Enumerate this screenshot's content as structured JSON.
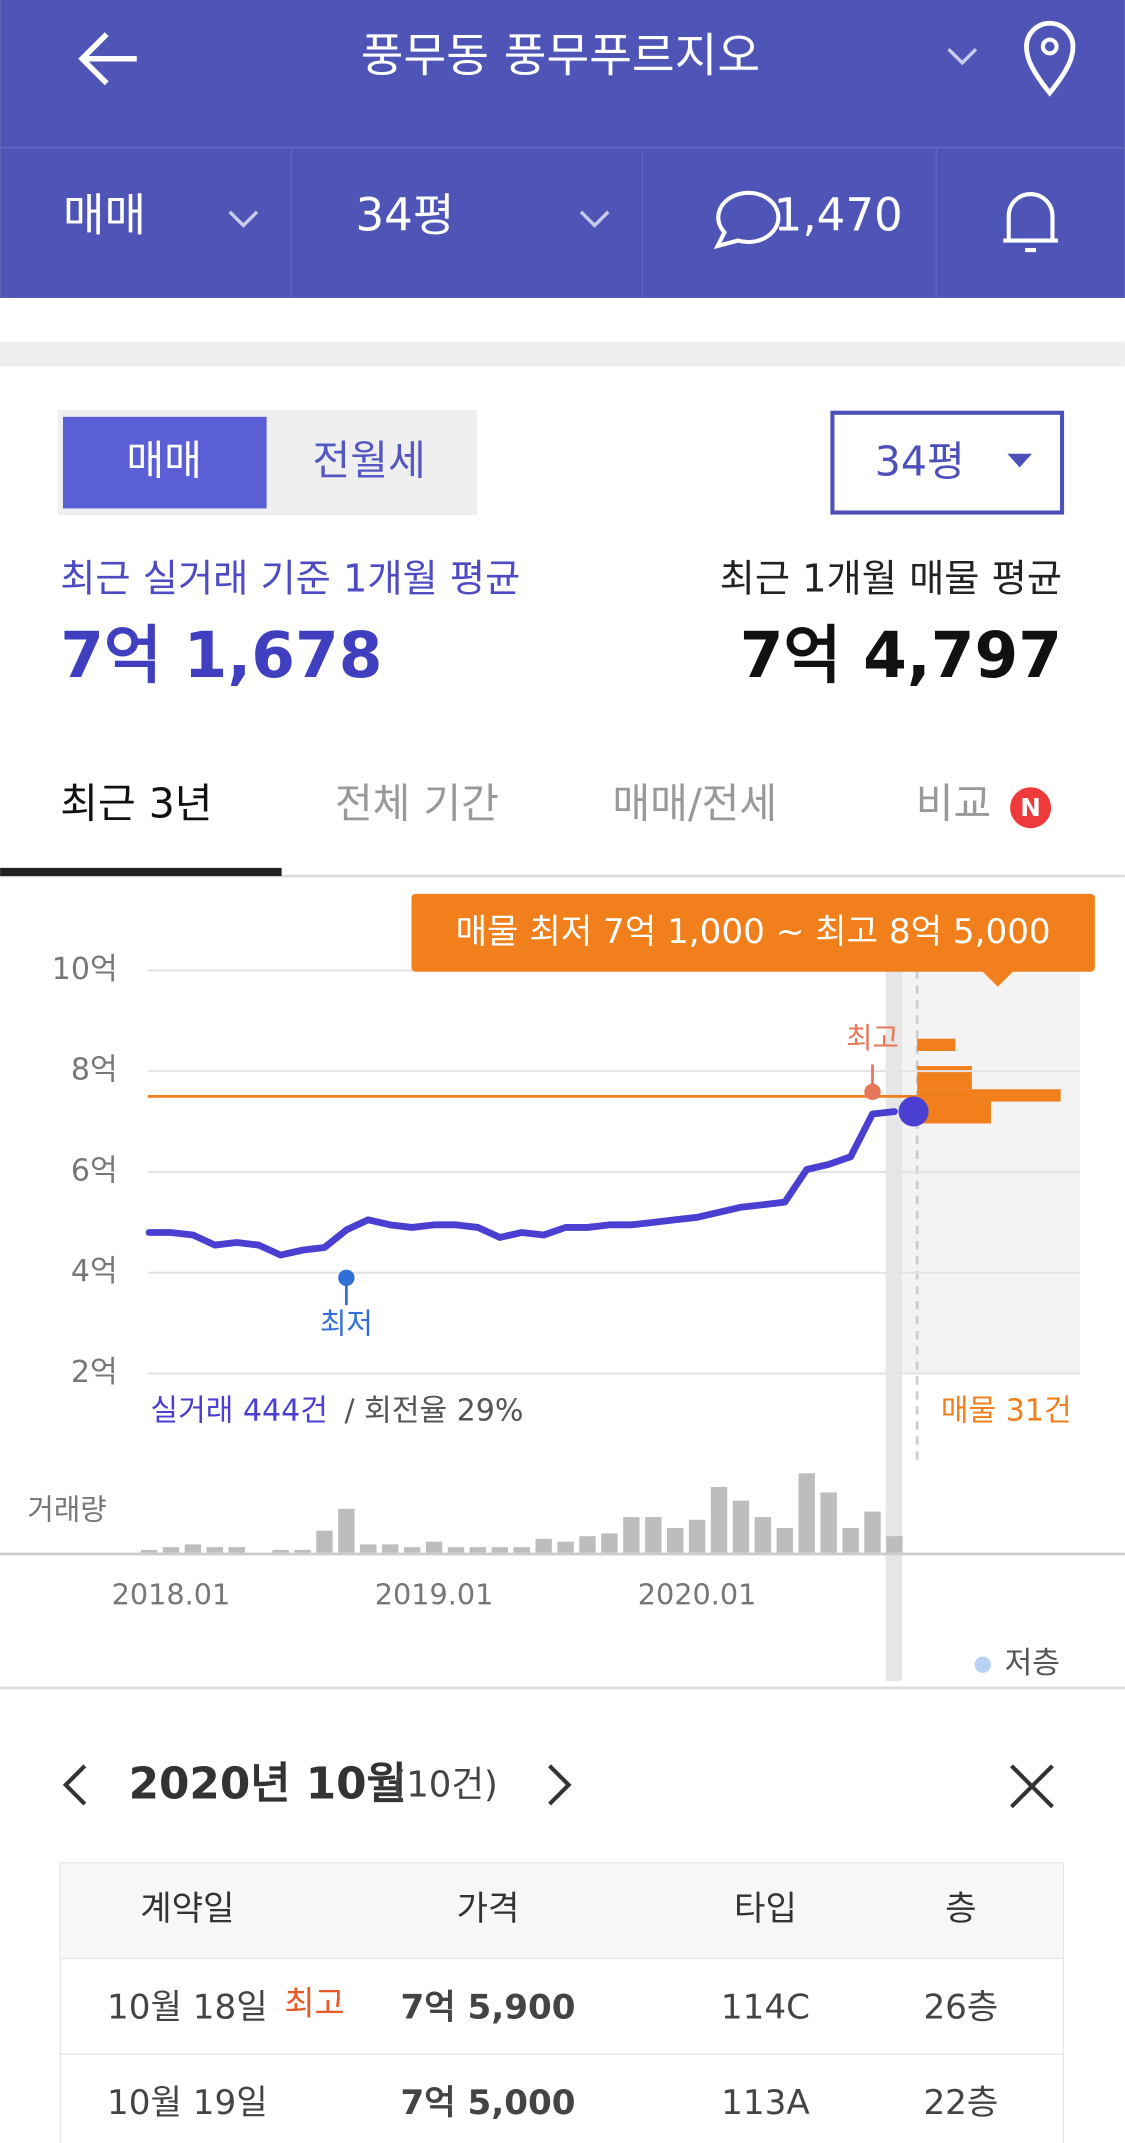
{
  "header": {
    "title": "풍무동 풍무푸르지오"
  },
  "toolbar": {
    "trade": "매매",
    "size": "34평",
    "comments": "1,470"
  },
  "toggle": {
    "options": [
      "매매",
      "전월세"
    ],
    "size": "34평"
  },
  "summary": {
    "left_label": "최근 실거래 기준 1개월 평균",
    "left_value": "7억 1,678",
    "right_label": "최근 1개월 매물 평균",
    "right_value": "7억 4,797"
  },
  "tabs": [
    "최근 3년",
    "전체 기간",
    "매매/전세",
    "비교"
  ],
  "badge": "N",
  "chart_data": {
    "type": "line",
    "tooltip": "매물 최저 7억 1,000 ~ 최고 8억 5,000",
    "categories": [
      null,
      "2018.01",
      null,
      null,
      null,
      null,
      null,
      null,
      null,
      null,
      null,
      null,
      null,
      "2019.01",
      null,
      null,
      null,
      null,
      null,
      null,
      null,
      null,
      null,
      null,
      null,
      "2020.01",
      null,
      null,
      null,
      null,
      null,
      null,
      null,
      null,
      null
    ],
    "series": [
      {
        "color": "#4a3fd1",
        "values": [
          4.8,
          4.8,
          4.75,
          4.55,
          4.6,
          4.55,
          4.35,
          4.45,
          4.5,
          4.85,
          5.05,
          4.95,
          4.9,
          4.95,
          4.95,
          4.9,
          4.7,
          4.8,
          4.75,
          4.9,
          4.9,
          4.95,
          4.95,
          5.0,
          5.05,
          5.1,
          5.2,
          5.3,
          5.35,
          5.4,
          6.05,
          6.15,
          6.3,
          7.15,
          7.2
        ]
      }
    ],
    "volume": {
      "label": "거래량",
      "color": "#bdbdbd",
      "values": [
        1,
        2,
        3,
        2,
        2,
        0,
        1,
        1,
        8,
        16,
        3,
        3,
        2,
        4,
        2,
        2,
        2,
        2,
        5,
        4,
        6,
        7,
        13,
        13,
        9,
        12,
        24,
        19,
        13,
        9,
        29,
        22,
        9,
        15,
        6
      ]
    },
    "ylim": [
      2,
      10
    ],
    "yticks": [
      {
        "value": 2,
        "label": "2억"
      },
      {
        "value": 4,
        "label": "4억"
      },
      {
        "value": 6,
        "label": "6억"
      },
      {
        "value": 8,
        "label": "8억"
      },
      {
        "value": 10,
        "label": "10억"
      }
    ],
    "grid": true,
    "ask_line": {
      "value": 7.5,
      "color": "#f07f1c"
    },
    "annotations": [
      {
        "text": "최고",
        "index": 33,
        "value": 7.59,
        "color": "#e8775a"
      },
      {
        "text": "최저",
        "index": 9,
        "value": 3.9,
        "color": "#2f6fd6"
      }
    ],
    "footer_left": "실거래 444건",
    "footer_left2": "/ 회전율 29%",
    "footer_right": "매물 31건",
    "legend": "저층"
  },
  "detail": {
    "month": "2020년 10월",
    "count": "(10건)",
    "columns": [
      "계약일",
      "가격",
      "타입",
      "층"
    ],
    "rows": [
      [
        "10월 18일",
        "7억 5,900",
        "114C",
        "26층"
      ],
      [
        "10월 19일",
        "7억 5,000",
        "113A",
        "22층"
      ]
    ],
    "badge": "최고"
  }
}
